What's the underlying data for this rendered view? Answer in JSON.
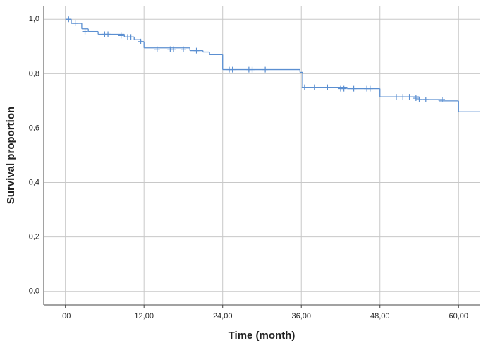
{
  "chart_data": {
    "type": "step",
    "x_label": "Time (month)",
    "y_label": "Survival proportion",
    "xlim": [
      -3.3,
      63.2
    ],
    "ylim": [
      -0.05,
      1.05
    ],
    "xticks": [
      {
        "value": 0,
        "label": ",00"
      },
      {
        "value": 12,
        "label": "12,00"
      },
      {
        "value": 24,
        "label": "24,00"
      },
      {
        "value": 36,
        "label": "36,00"
      },
      {
        "value": 48,
        "label": "48,00"
      },
      {
        "value": 60,
        "label": "60,00"
      }
    ],
    "yticks": [
      {
        "value": 0,
        "label": "0,0"
      },
      {
        "value": 0.2,
        "label": "0,2"
      },
      {
        "value": 0.4,
        "label": "0,4"
      },
      {
        "value": 0.6,
        "label": "0,6"
      },
      {
        "value": 0.8,
        "label": "0,8"
      },
      {
        "value": 1.0,
        "label": "1,0"
      }
    ],
    "grid": true,
    "series": [
      {
        "color": "#5b8fd1",
        "x": [
          0,
          0.9,
          2.5,
          3.5,
          5,
          9,
          10.5,
          11.5,
          12,
          19,
          21,
          22,
          24,
          35.8,
          36.2,
          43,
          48,
          54,
          57,
          60
        ],
        "values": [
          1.0,
          0.985,
          0.965,
          0.955,
          0.945,
          0.935,
          0.925,
          0.918,
          0.895,
          0.885,
          0.88,
          0.87,
          0.815,
          0.805,
          0.75,
          0.745,
          0.715,
          0.705,
          0.7,
          0.66
        ]
      },
      {
        "color": "#5b8fd1",
        "x": [
          0.5,
          1.5,
          3,
          6,
          6.5,
          8.5,
          9.5,
          10,
          11.5,
          14,
          16,
          16.5,
          18,
          20,
          25,
          25.5,
          28,
          28.5,
          30.5,
          36.5,
          38,
          40,
          42,
          42.5,
          44,
          46,
          46.5,
          50.5,
          51.5,
          52.5,
          53.5,
          54,
          55,
          57.5
        ],
        "values": [
          1.0,
          0.985,
          0.955,
          0.945,
          0.945,
          0.94,
          0.935,
          0.935,
          0.918,
          0.89,
          0.89,
          0.89,
          0.89,
          0.885,
          0.815,
          0.815,
          0.815,
          0.815,
          0.815,
          0.75,
          0.75,
          0.75,
          0.745,
          0.745,
          0.745,
          0.745,
          0.745,
          0.715,
          0.715,
          0.715,
          0.71,
          0.705,
          0.705,
          0.705
        ]
      }
    ]
  }
}
